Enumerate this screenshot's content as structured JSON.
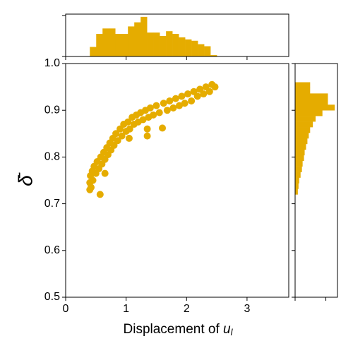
{
  "chart_data": {
    "type": "scatter",
    "xlabel": {
      "text": "Displacement of ",
      "var": "u",
      "sub": "l"
    },
    "ylabel": "δ̄",
    "color": "#e5ac00",
    "xlim": [
      0,
      3.69
    ],
    "xticks": [
      0,
      1,
      2,
      3
    ],
    "ylim": [
      0.5,
      1.0
    ],
    "yticks": [
      0.5,
      0.6,
      0.7,
      0.8,
      0.9,
      {
        "value": 1,
        "label": "1.0"
      }
    ],
    "x": [
      0.4,
      0.4,
      0.41,
      0.42,
      0.44,
      0.45,
      0.47,
      0.5,
      0.52,
      0.55,
      0.57,
      0.58,
      0.6,
      0.63,
      0.65,
      0.68,
      0.7,
      0.73,
      0.75,
      0.78,
      0.8,
      0.83,
      0.86,
      0.9,
      0.93,
      0.96,
      1.0,
      1.03,
      1.06,
      1.1,
      1.13,
      1.17,
      1.2,
      1.24,
      1.28,
      1.32,
      1.35,
      1.37,
      1.4,
      1.45,
      1.5,
      1.55,
      1.6,
      1.62,
      1.68,
      1.72,
      1.78,
      1.82,
      1.88,
      1.92,
      1.97,
      2.02,
      2.08,
      2.12,
      2.18,
      2.22,
      2.28,
      2.32,
      2.38,
      2.42,
      2.47,
      1.35,
      0.65,
      1.05
    ],
    "y": [
      0.73,
      0.745,
      0.76,
      0.735,
      0.77,
      0.75,
      0.78,
      0.765,
      0.79,
      0.775,
      0.72,
      0.8,
      0.785,
      0.81,
      0.795,
      0.82,
      0.805,
      0.83,
      0.815,
      0.84,
      0.825,
      0.85,
      0.835,
      0.86,
      0.845,
      0.87,
      0.855,
      0.875,
      0.86,
      0.885,
      0.87,
      0.89,
      0.875,
      0.895,
      0.88,
      0.9,
      0.845,
      0.885,
      0.905,
      0.89,
      0.91,
      0.895,
      0.862,
      0.915,
      0.9,
      0.92,
      0.905,
      0.925,
      0.91,
      0.93,
      0.915,
      0.935,
      0.92,
      0.94,
      0.93,
      0.945,
      0.935,
      0.95,
      0.94,
      0.955,
      0.95,
      0.86,
      0.765,
      0.84
    ],
    "top_hist": {
      "type": "histogram",
      "bins": [
        0.4,
        0.505,
        0.61,
        0.715,
        0.82,
        0.925,
        1.03,
        1.135,
        1.24,
        1.345,
        1.45,
        1.555,
        1.66,
        1.765,
        1.87,
        1.975,
        2.08,
        2.185,
        2.29,
        2.395,
        2.5
      ],
      "counts": [
        14,
        33,
        41,
        41,
        33,
        33,
        44,
        50,
        58,
        35,
        35,
        30,
        37,
        33,
        28,
        25,
        23,
        18,
        15,
        2
      ],
      "ylim": [
        0,
        62
      ],
      "yticks": [
        0,
        60
      ]
    },
    "right_hist": {
      "type": "histogram",
      "bins": [
        0.72,
        0.732,
        0.744,
        0.756,
        0.768,
        0.78,
        0.792,
        0.804,
        0.816,
        0.828,
        0.84,
        0.852,
        0.864,
        0.876,
        0.888,
        0.9,
        0.912,
        0.924,
        0.936,
        0.948,
        0.96
      ],
      "counts": [
        4,
        5,
        6,
        8,
        10,
        11,
        13,
        14,
        16,
        18,
        20,
        22,
        26,
        30,
        40,
        58,
        48,
        48,
        22,
        22
      ],
      "xlim": [
        0,
        62
      ],
      "xticks": [
        0,
        45
      ]
    }
  }
}
